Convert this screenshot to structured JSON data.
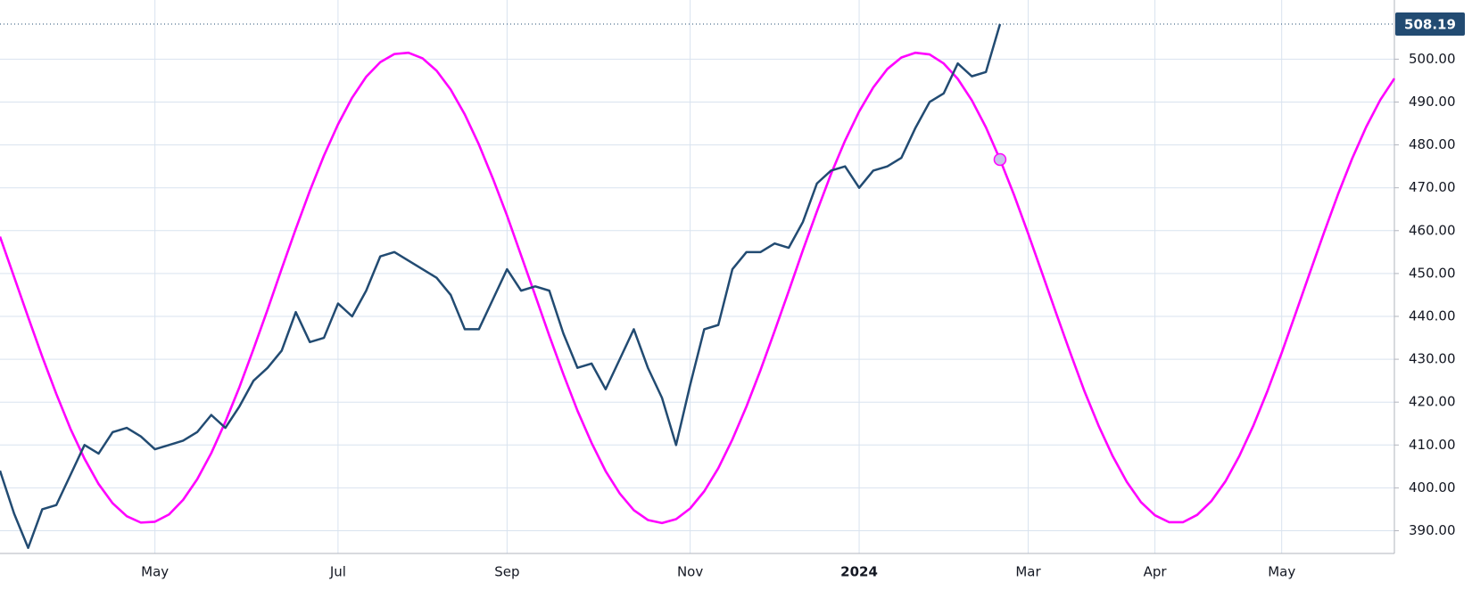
{
  "chart_data": {
    "type": "line",
    "categories": [
      null,
      null,
      null,
      null,
      null,
      null,
      null,
      null,
      null,
      null,
      null,
      "May",
      null,
      null,
      null,
      null,
      null,
      null,
      null,
      null,
      null,
      null,
      null,
      null,
      "Jul",
      null,
      null,
      null,
      null,
      null,
      null,
      null,
      null,
      null,
      null,
      null,
      "Sep",
      null,
      null,
      null,
      null,
      null,
      null,
      null,
      null,
      null,
      null,
      null,
      null,
      "Nov",
      null,
      null,
      null,
      null,
      null,
      null,
      null,
      null,
      null,
      null,
      null,
      "2024",
      null,
      null,
      null,
      null,
      null,
      null,
      null,
      null,
      null,
      null,
      null,
      "Mar",
      null,
      null,
      null,
      null,
      null,
      null,
      null,
      null,
      "Apr",
      null,
      null,
      null,
      null,
      null,
      null,
      null,
      null,
      "May",
      null,
      null,
      null,
      null,
      null,
      null,
      null,
      null
    ],
    "series": [
      {
        "color": "#224b72",
        "values": [
          404,
          394,
          386,
          395,
          396,
          403,
          410,
          408,
          413,
          414,
          412,
          409,
          410,
          411,
          413,
          417,
          414,
          419,
          425,
          428,
          432,
          441,
          434,
          435,
          443,
          440,
          446,
          454,
          455,
          453,
          451,
          449,
          445,
          437,
          437,
          444,
          451,
          446,
          447,
          446,
          436,
          428,
          429,
          423,
          430,
          437,
          428,
          421,
          410,
          424,
          437,
          438,
          451,
          455,
          455,
          457,
          456,
          462,
          471,
          474,
          475,
          470,
          474,
          475,
          477,
          484,
          490,
          492,
          499,
          496,
          497,
          508.19,
          null,
          null,
          null,
          null,
          null,
          null,
          null,
          null,
          null,
          null,
          null,
          null,
          null,
          null,
          null,
          null,
          null,
          null,
          null,
          null,
          null,
          null,
          null,
          null,
          null,
          null,
          null,
          null
        ]
      },
      {
        "color": "#ff00ff",
        "values": [
          458.6,
          449.2,
          439.8,
          430.6,
          421.9,
          413.8,
          406.8,
          400.9,
          396.4,
          393.4,
          391.9,
          392.1,
          393.8,
          397.2,
          402.0,
          408.1,
          415.4,
          423.5,
          432.4,
          441.6,
          451.1,
          460.4,
          469.3,
          477.5,
          484.8,
          491.0,
          495.9,
          499.3,
          501.2,
          501.5,
          500.2,
          497.3,
          492.9,
          487.1,
          480.1,
          472.1,
          463.5,
          454.2,
          444.9,
          435.5,
          426.5,
          418.0,
          410.5,
          403.9,
          398.7,
          394.8,
          392.5,
          391.8,
          392.7,
          395.2,
          399.2,
          404.6,
          411.3,
          419.0,
          427.5,
          436.6,
          445.9,
          455.4,
          464.5,
          473.2,
          481.0,
          487.8,
          493.4,
          497.7,
          500.4,
          501.5,
          501.1,
          499.0,
          495.4,
          490.4,
          484.1,
          476.6,
          468.3,
          459.3,
          450.0,
          440.6,
          431.4,
          422.5,
          414.5,
          407.4,
          401.4,
          396.7,
          393.6,
          392.0,
          392.0,
          393.7,
          396.9,
          401.5,
          407.5,
          414.6,
          422.7,
          431.5,
          440.8,
          450.2,
          459.5,
          468.5,
          476.8,
          484.2,
          490.5,
          495.5
        ]
      }
    ],
    "ylim": [
      384.7,
      513.8
    ],
    "yticks": [
      {
        "value": 390,
        "label": "390.00"
      },
      {
        "value": 400,
        "label": "400.00"
      },
      {
        "value": 410,
        "label": "410.00"
      },
      {
        "value": 420,
        "label": "420.00"
      },
      {
        "value": 430,
        "label": "430.00"
      },
      {
        "value": 440,
        "label": "440.00"
      },
      {
        "value": 450,
        "label": "450.00"
      },
      {
        "value": 460,
        "label": "460.00"
      },
      {
        "value": 470,
        "label": "470.00"
      },
      {
        "value": 480,
        "label": "480.00"
      },
      {
        "value": 490,
        "label": "490.00"
      },
      {
        "value": 500,
        "label": "500.00"
      }
    ],
    "grid": true
  }
}
